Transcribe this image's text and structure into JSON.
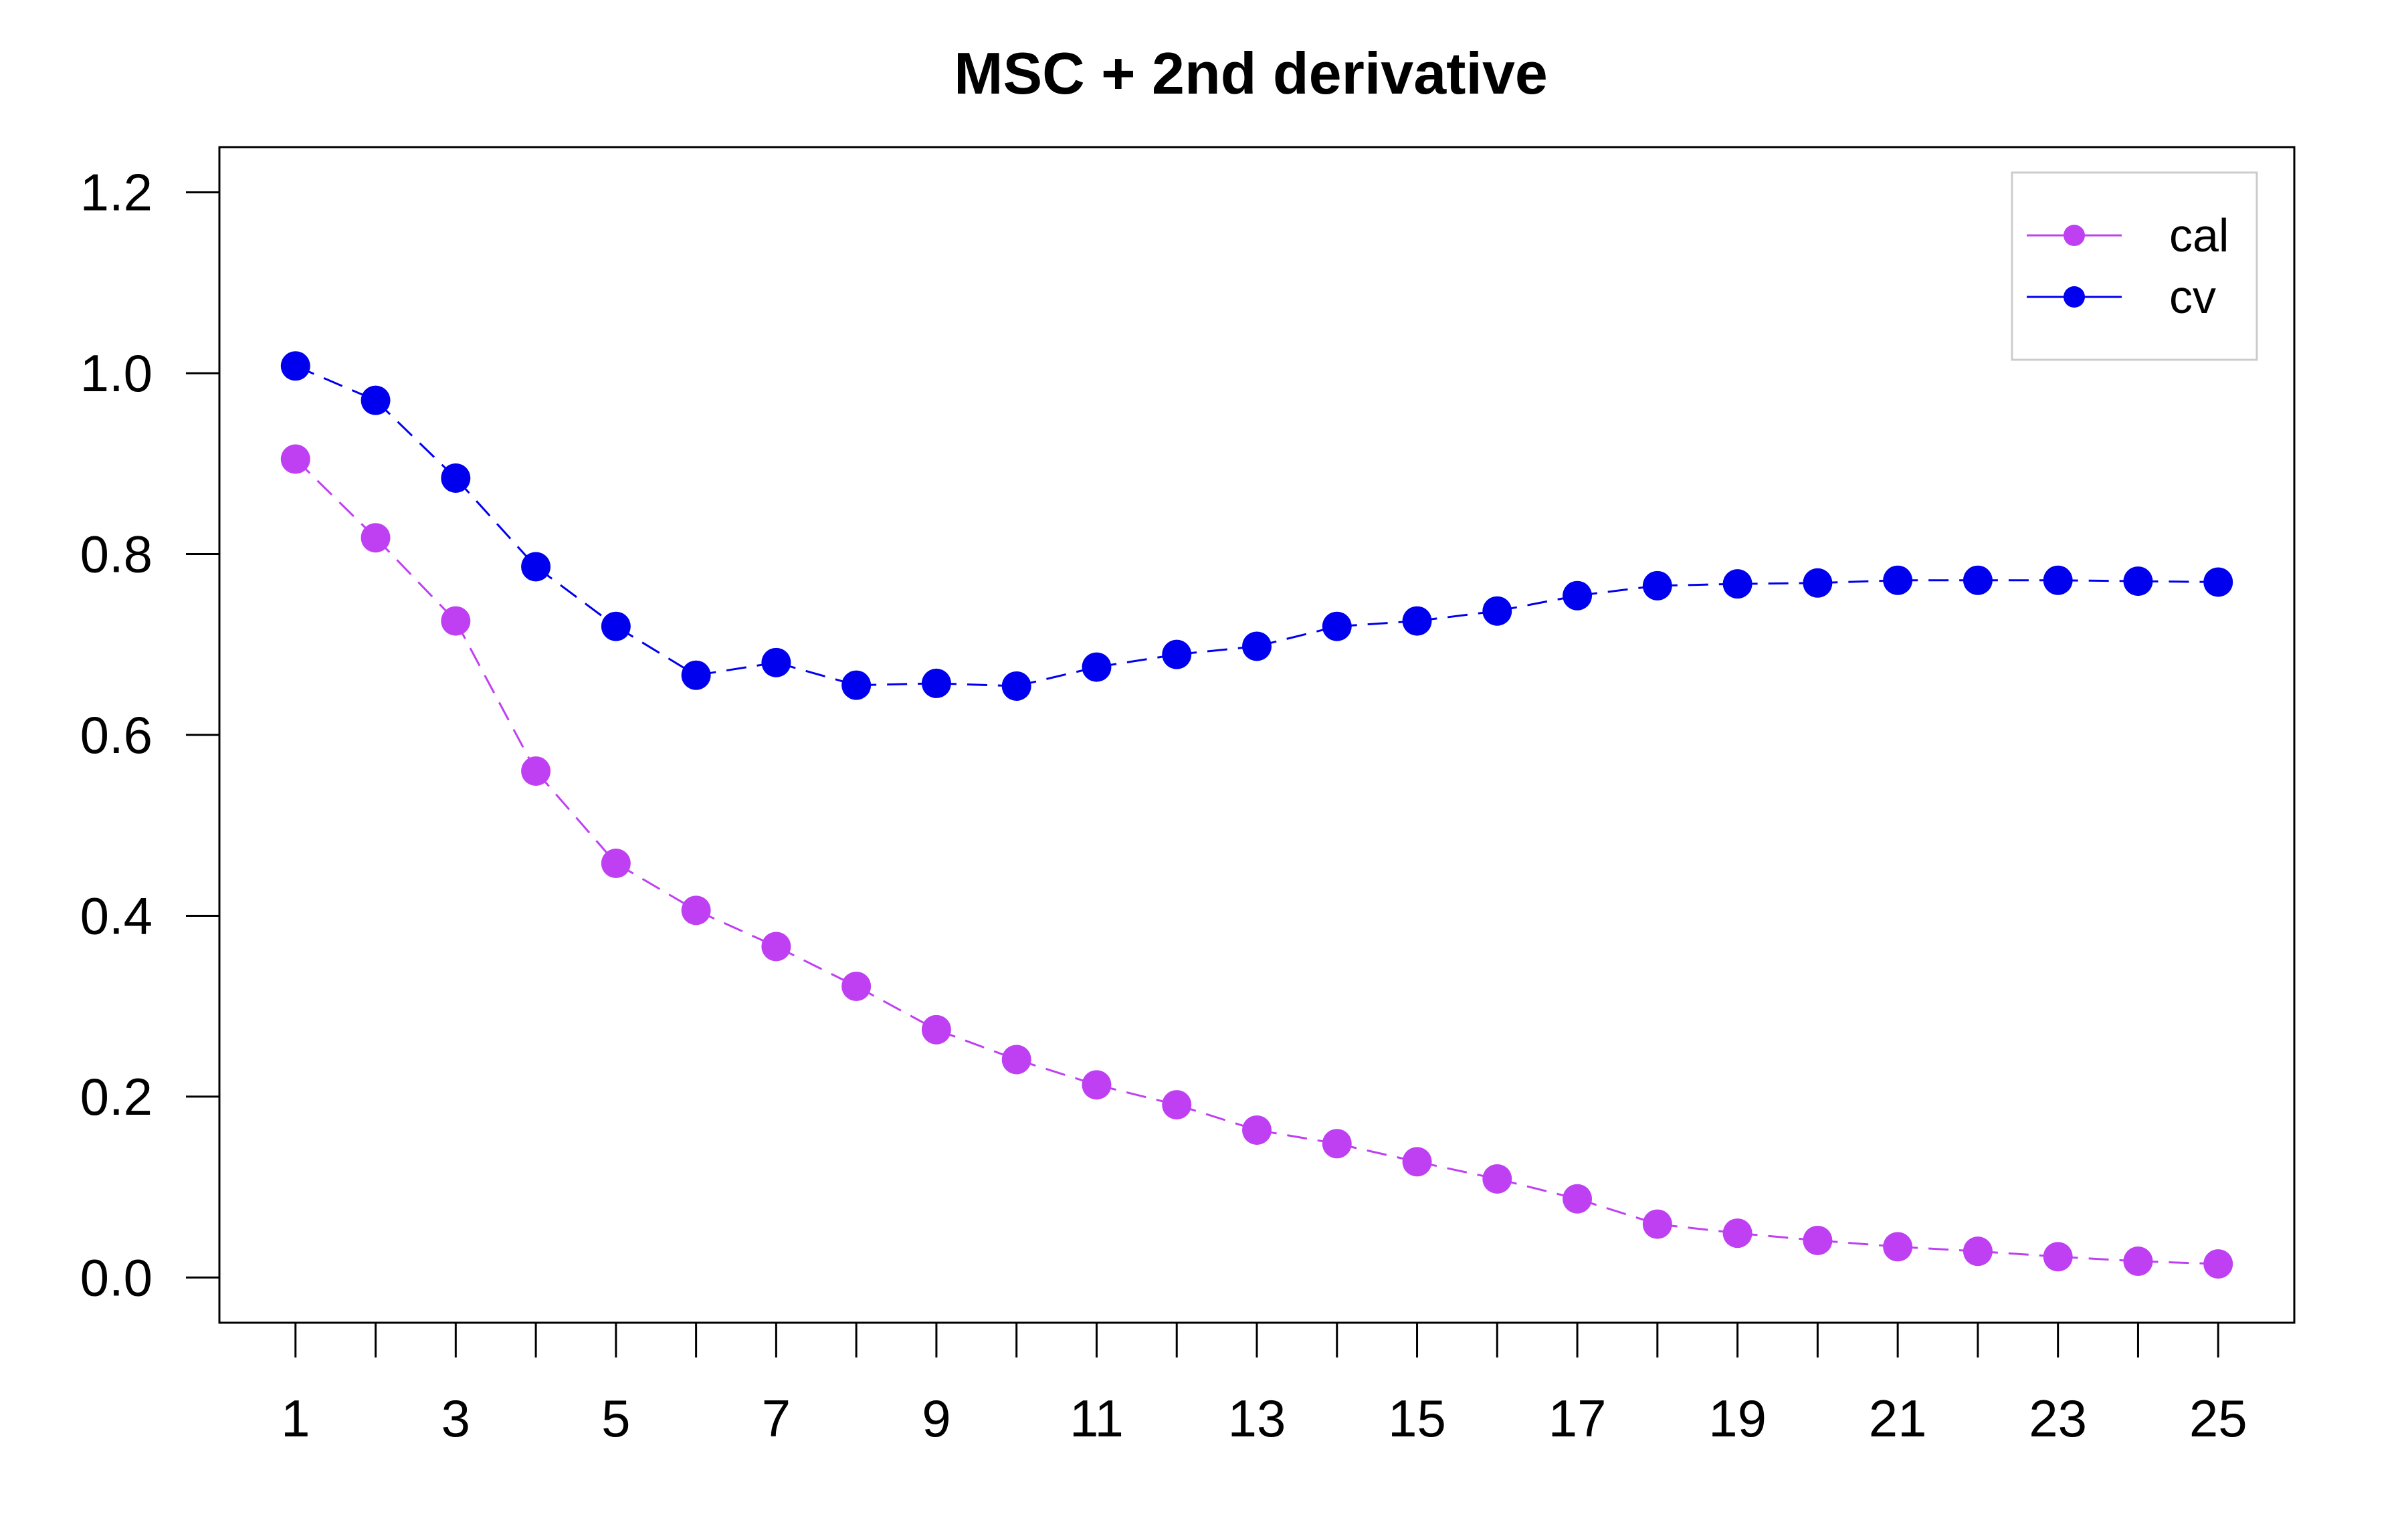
{
  "chart_data": {
    "type": "line",
    "title": "MSC + 2nd derivative",
    "xlabel": "",
    "ylabel": "",
    "x": [
      1,
      2,
      3,
      4,
      5,
      6,
      7,
      8,
      9,
      10,
      11,
      12,
      13,
      14,
      15,
      16,
      17,
      18,
      19,
      20,
      21,
      22,
      23,
      24,
      25
    ],
    "x_tick_labels": [
      "1",
      "3",
      "5",
      "7",
      "9",
      "11",
      "13",
      "15",
      "17",
      "19",
      "21",
      "23",
      "25"
    ],
    "y_tick_labels": [
      "0.0",
      "0.2",
      "0.4",
      "0.6",
      "0.8",
      "1.0",
      "1.2"
    ],
    "xlim": [
      0.05,
      25.95
    ],
    "ylim": [
      -0.05,
      1.25
    ],
    "grid": false,
    "legend_position": "top-right",
    "series": [
      {
        "name": "cal",
        "color": "#BF40F2",
        "values": [
          0.905,
          0.818,
          0.726,
          0.56,
          0.458,
          0.406,
          0.366,
          0.322,
          0.274,
          0.241,
          0.213,
          0.191,
          0.163,
          0.148,
          0.128,
          0.109,
          0.087,
          0.059,
          0.049,
          0.041,
          0.034,
          0.029,
          0.023,
          0.018,
          0.015
        ]
      },
      {
        "name": "cv",
        "color": "#0000EE",
        "values": [
          1.008,
          0.97,
          0.884,
          0.786,
          0.72,
          0.666,
          0.68,
          0.655,
          0.657,
          0.654,
          0.675,
          0.689,
          0.698,
          0.72,
          0.726,
          0.737,
          0.754,
          0.765,
          0.767,
          0.768,
          0.771,
          0.771,
          0.771,
          0.77,
          0.769
        ]
      }
    ]
  }
}
